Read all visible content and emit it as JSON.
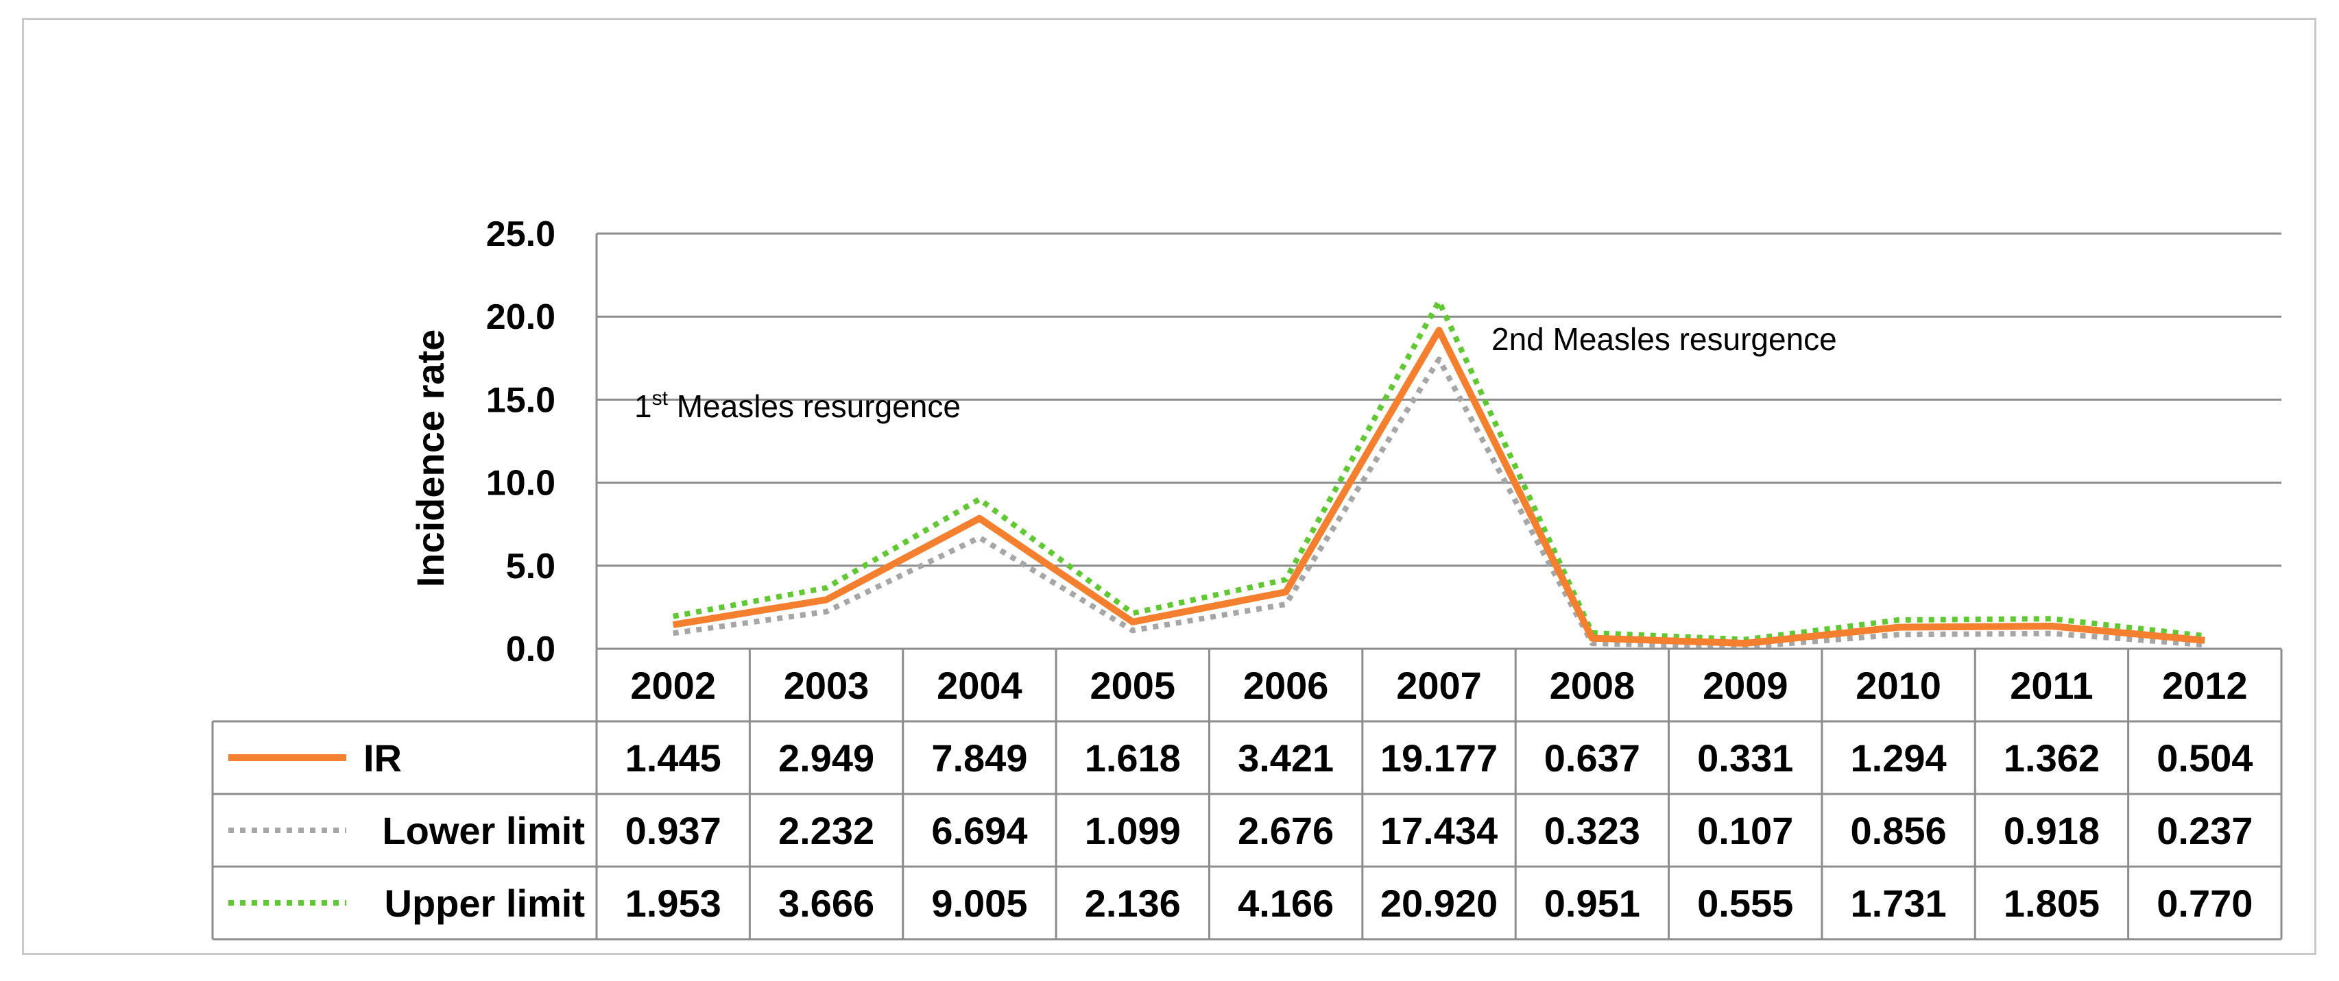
{
  "chart_data": {
    "type": "line",
    "ylabel": "Incidence rate",
    "ylim": [
      0,
      25
    ],
    "yticks": [
      "0.0",
      "5.0",
      "10.0",
      "15.0",
      "20.0",
      "25.0"
    ],
    "categories": [
      "2002",
      "2003",
      "2004",
      "2005",
      "2006",
      "2007",
      "2008",
      "2009",
      "2010",
      "2011",
      "2012"
    ],
    "series": [
      {
        "name": "IR",
        "color": "#f47f2f",
        "style": "solid",
        "values": [
          1.445,
          2.949,
          7.849,
          1.618,
          3.421,
          19.177,
          0.637,
          0.331,
          1.294,
          1.362,
          0.504
        ],
        "labels": [
          "1.445",
          "2.949",
          "7.849",
          "1.618",
          "3.421",
          "19.177",
          "0.637",
          "0.331",
          "1.294",
          "1.362",
          "0.504"
        ]
      },
      {
        "name": "Lower limit",
        "color": "#a6a6a6",
        "style": "dotted",
        "values": [
          0.937,
          2.232,
          6.694,
          1.099,
          2.676,
          17.434,
          0.323,
          0.107,
          0.856,
          0.918,
          0.237
        ],
        "labels": [
          "0.937",
          "2.232",
          "6.694",
          "1.099",
          "2.676",
          "17.434",
          "0.323",
          "0.107",
          "0.856",
          "0.918",
          "0.237"
        ]
      },
      {
        "name": "Upper limit",
        "color": "#5fc832",
        "style": "dotted",
        "values": [
          1.953,
          3.666,
          9.005,
          2.136,
          4.166,
          20.92,
          0.951,
          0.555,
          1.731,
          1.805,
          0.77
        ],
        "labels": [
          "1.953",
          "3.666",
          "9.005",
          "2.136",
          "4.166",
          "20.920",
          "0.951",
          "0.555",
          "1.731",
          "1.805",
          "0.770"
        ]
      }
    ],
    "annotations": [
      {
        "base": "1",
        "sup": "st",
        "text": " Measles resurgence"
      },
      {
        "base": "",
        "sup": "",
        "text": "2nd Measles resurgence"
      }
    ],
    "data_table": true,
    "grid": true
  }
}
